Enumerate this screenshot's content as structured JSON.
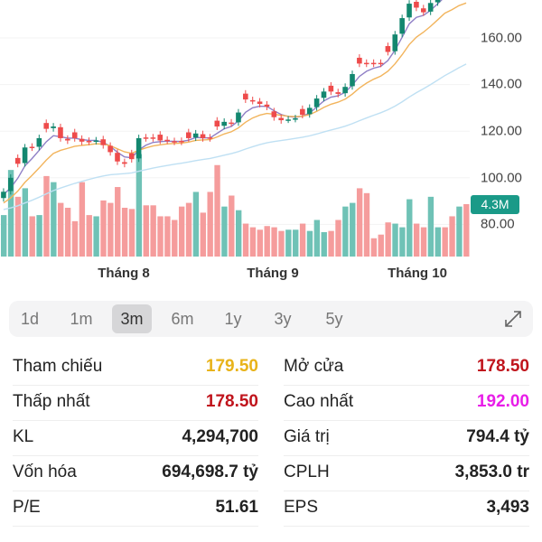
{
  "chart_data": {
    "type": "candlestick",
    "y_ticks": [
      "160.00",
      "140.00",
      "120.00",
      "100.00",
      "80.00"
    ],
    "y_tick_values": [
      160,
      140,
      120,
      100,
      80
    ],
    "x_labels": [
      "Tháng 8",
      "Tháng 9",
      "Tháng 10"
    ],
    "volume_badge": "4.3M",
    "closes": [
      94,
      100,
      106,
      113,
      113,
      117,
      121,
      122,
      117,
      116,
      117,
      115.5,
      115.5,
      116,
      114,
      111,
      107,
      106,
      108,
      117,
      117,
      117,
      116,
      116,
      115.5,
      115.5,
      117,
      119,
      117,
      117,
      122,
      124,
      123.5,
      128,
      133.6,
      133,
      131.7,
      130.5,
      126,
      124.7,
      125,
      125.5,
      127,
      130,
      134,
      137,
      137,
      136,
      139,
      144.5,
      149,
      149,
      149,
      149,
      154,
      161.5,
      168.5,
      174.7,
      173,
      171,
      175,
      179,
      182,
      178,
      181,
      179.5
    ],
    "volumes_m": [
      3.4,
      7.1,
      4.9,
      5.6,
      3.3,
      3.4,
      6.6,
      6.1,
      4.4,
      4.0,
      2.9,
      6.1,
      3.4,
      3.3,
      4.6,
      4.4,
      5.7,
      4.0,
      3.9,
      8.4,
      4.2,
      4.2,
      3.3,
      3.3,
      3.0,
      4.1,
      4.4,
      5.3,
      3.6,
      5.3,
      7.5,
      4.1,
      5.0,
      3.8,
      2.7,
      2.4,
      2.2,
      2.5,
      2.4,
      2.1,
      2.2,
      2.2,
      2.7,
      2.1,
      3.0,
      2.0,
      2.1,
      3.0,
      4.1,
      4.4,
      5.6,
      5.2,
      1.5,
      1.8,
      2.8,
      2.7,
      2.4,
      4.7,
      2.7,
      2.4,
      4.9,
      2.4,
      2.4,
      3.3,
      4.1,
      4.3
    ],
    "colors": {
      "up": "#13876f",
      "down": "#ee4b4b",
      "vol_up": "#6fc2b6",
      "vol_down": "#f59c9c",
      "ma_fast": "#8f7fc6",
      "ma_mid": "#f2b45c",
      "ma_slow": "#bfe0f3"
    }
  },
  "periods": [
    {
      "label": "1d",
      "selected": false
    },
    {
      "label": "1m",
      "selected": false
    },
    {
      "label": "3m",
      "selected": true
    },
    {
      "label": "6m",
      "selected": false
    },
    {
      "label": "1y",
      "selected": false
    },
    {
      "label": "3y",
      "selected": false
    },
    {
      "label": "5y",
      "selected": false
    }
  ],
  "stats": {
    "left": [
      {
        "label": "Tham chiếu",
        "value": "179.50",
        "color": "#e8b31a"
      },
      {
        "label": "Thấp nhất",
        "value": "178.50",
        "color": "#c0141c"
      },
      {
        "label": "KL",
        "value": "4,294,700",
        "color": "#222222"
      },
      {
        "label": "Vốn hóa",
        "value": "694,698.7 tỷ",
        "color": "#222222"
      },
      {
        "label": "P/E",
        "value": "51.61",
        "color": "#222222"
      }
    ],
    "right": [
      {
        "label": "Mở cửa",
        "value": "178.50",
        "color": "#c0141c"
      },
      {
        "label": "Cao nhất",
        "value": "192.00",
        "color": "#e81ee8"
      },
      {
        "label": "Giá trị",
        "value": "794.4 tỷ",
        "color": "#222222"
      },
      {
        "label": "CPLH",
        "value": "3,853.0 tr",
        "color": "#222222"
      },
      {
        "label": "EPS",
        "value": "3,493",
        "color": "#222222"
      }
    ]
  }
}
